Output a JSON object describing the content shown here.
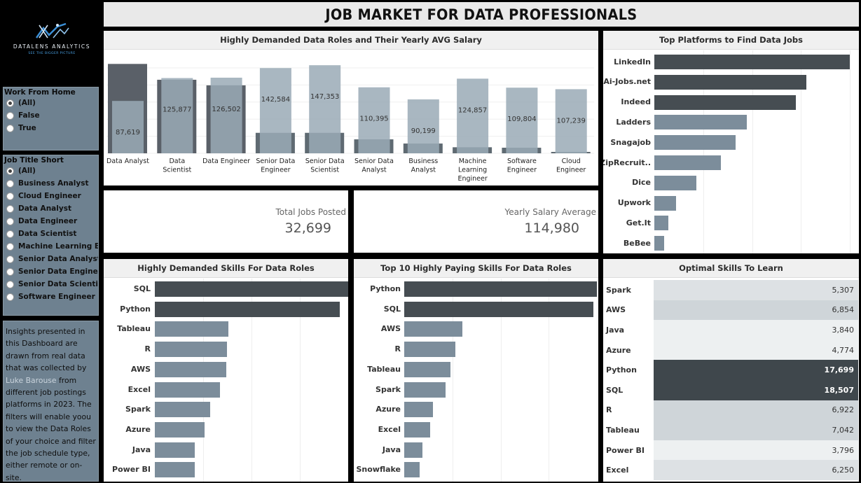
{
  "brand": {
    "name": "DATALENS ANALYTICS",
    "tagline": "SEE THE BIGGER PICTURE"
  },
  "filters": {
    "work_from_home": {
      "title": "Work From Home",
      "options": [
        "(All)",
        "False",
        "True"
      ],
      "selected": "(All)"
    },
    "job_title_short": {
      "title": "Job Title Short",
      "options": [
        "(All)",
        "Business Analyst",
        "Cloud Engineer",
        "Data Analyst",
        "Data Engineer",
        "Data Scientist",
        "Machine Learning En..",
        "Senior Data Analyst",
        "Senior Data Engineer",
        "Senior Data Scientist",
        "Software Engineer"
      ],
      "selected": "(All)"
    }
  },
  "insights": {
    "text_before": "Insights presented in this Dashboard are drawn from real data that was collected by ",
    "link": "Luke Barouse",
    "text_after": " from different job postings platforms in 2023. The filters will enable yoou to view the Data Roles of your choice and filter the job schedule type, either remote or on-site."
  },
  "title": "JOB MARKET FOR DATA PROFESSIONALS",
  "kpis": {
    "total_jobs": {
      "label": "Total Jobs Posted",
      "value": "32,699"
    },
    "avg_salary": {
      "label": "Yearly Salary  Average",
      "value": "114,980"
    }
  },
  "colors": {
    "dark": "#464d52",
    "mid": "#7c8d9b",
    "light": "#9aaab6",
    "darkest": "#5a6068"
  },
  "chart_data": [
    {
      "type": "bar",
      "title": "Highly Demanded Data Roles and Their Yearly AVG Salary",
      "categories": [
        "Data Analyst",
        "Data Scientist",
        "Data Engineer",
        "Senior Data Engineer",
        "Senior Data Scientist",
        "Senior Data Analyst",
        "Business Analyst",
        "Machine Learning Engineer",
        "Software Engineer",
        "Cloud Engineer"
      ],
      "series": [
        {
          "values": [
            87619,
            125877,
            126502,
            142584,
            147353,
            110395,
            90199,
            124857,
            109804,
            107239
          ]
        },
        {
          "values": [
            9600,
            7900,
            7300,
            2200,
            2200,
            1500,
            1050,
            650,
            600,
            150
          ]
        }
      ],
      "data_labels": [
        "87,619",
        "125,877",
        "126,502",
        "142,584",
        "147,353",
        "110,395",
        "90,199",
        "124,857",
        "109,804",
        "107,239"
      ]
    },
    {
      "type": "bar",
      "orientation": "horizontal",
      "title": "Top Platforms to Find Data Jobs",
      "categories": [
        "LinkedIn",
        "Ai-Jobs.net",
        "Indeed",
        "Ladders",
        "Snagajob",
        "ZipRecruit..",
        "Dice",
        "Upwork",
        "Get.It",
        "BeBee"
      ],
      "values": [
        13700,
        10650,
        9900,
        6500,
        5700,
        4650,
        2950,
        1500,
        1000,
        700
      ]
    },
    {
      "type": "bar",
      "orientation": "horizontal",
      "title": "Highly Demanded Skills For Data Roles",
      "categories": [
        "SQL",
        "Python",
        "Tableau",
        "R",
        "AWS",
        "Excel",
        "Spark",
        "Azure",
        "Java",
        "Power BI"
      ],
      "values": [
        18507,
        17699,
        7042,
        6922,
        6854,
        6250,
        5307,
        4774,
        3840,
        3796
      ]
    },
    {
      "type": "bar",
      "orientation": "horizontal",
      "title": "Top 10 Highly Paying Skills For Data Roles",
      "categories": [
        "Python",
        "SQL",
        "AWS",
        "R",
        "Tableau",
        "Spark",
        "Azure",
        "Excel",
        "Java",
        "Snowflake"
      ],
      "values": [
        100,
        98,
        30,
        26.5,
        24,
        21.5,
        15,
        13.5,
        9.5,
        8
      ]
    },
    {
      "type": "table",
      "title": "Optimal Skills To Learn",
      "rows": [
        {
          "skill": "Spark",
          "value": "5,307",
          "n": 5307
        },
        {
          "skill": "AWS",
          "value": "6,854",
          "n": 6854
        },
        {
          "skill": "Java",
          "value": "3,840",
          "n": 3840
        },
        {
          "skill": "Azure",
          "value": "4,774",
          "n": 4774
        },
        {
          "skill": "Python",
          "value": "17,699",
          "n": 17699
        },
        {
          "skill": "SQL",
          "value": "18,507",
          "n": 18507
        },
        {
          "skill": "R",
          "value": "6,922",
          "n": 6922
        },
        {
          "skill": "Tableau",
          "value": "7,042",
          "n": 7042
        },
        {
          "skill": "Power BI",
          "value": "3,796",
          "n": 3796
        },
        {
          "skill": "Excel",
          "value": "6,250",
          "n": 6250
        }
      ]
    }
  ]
}
